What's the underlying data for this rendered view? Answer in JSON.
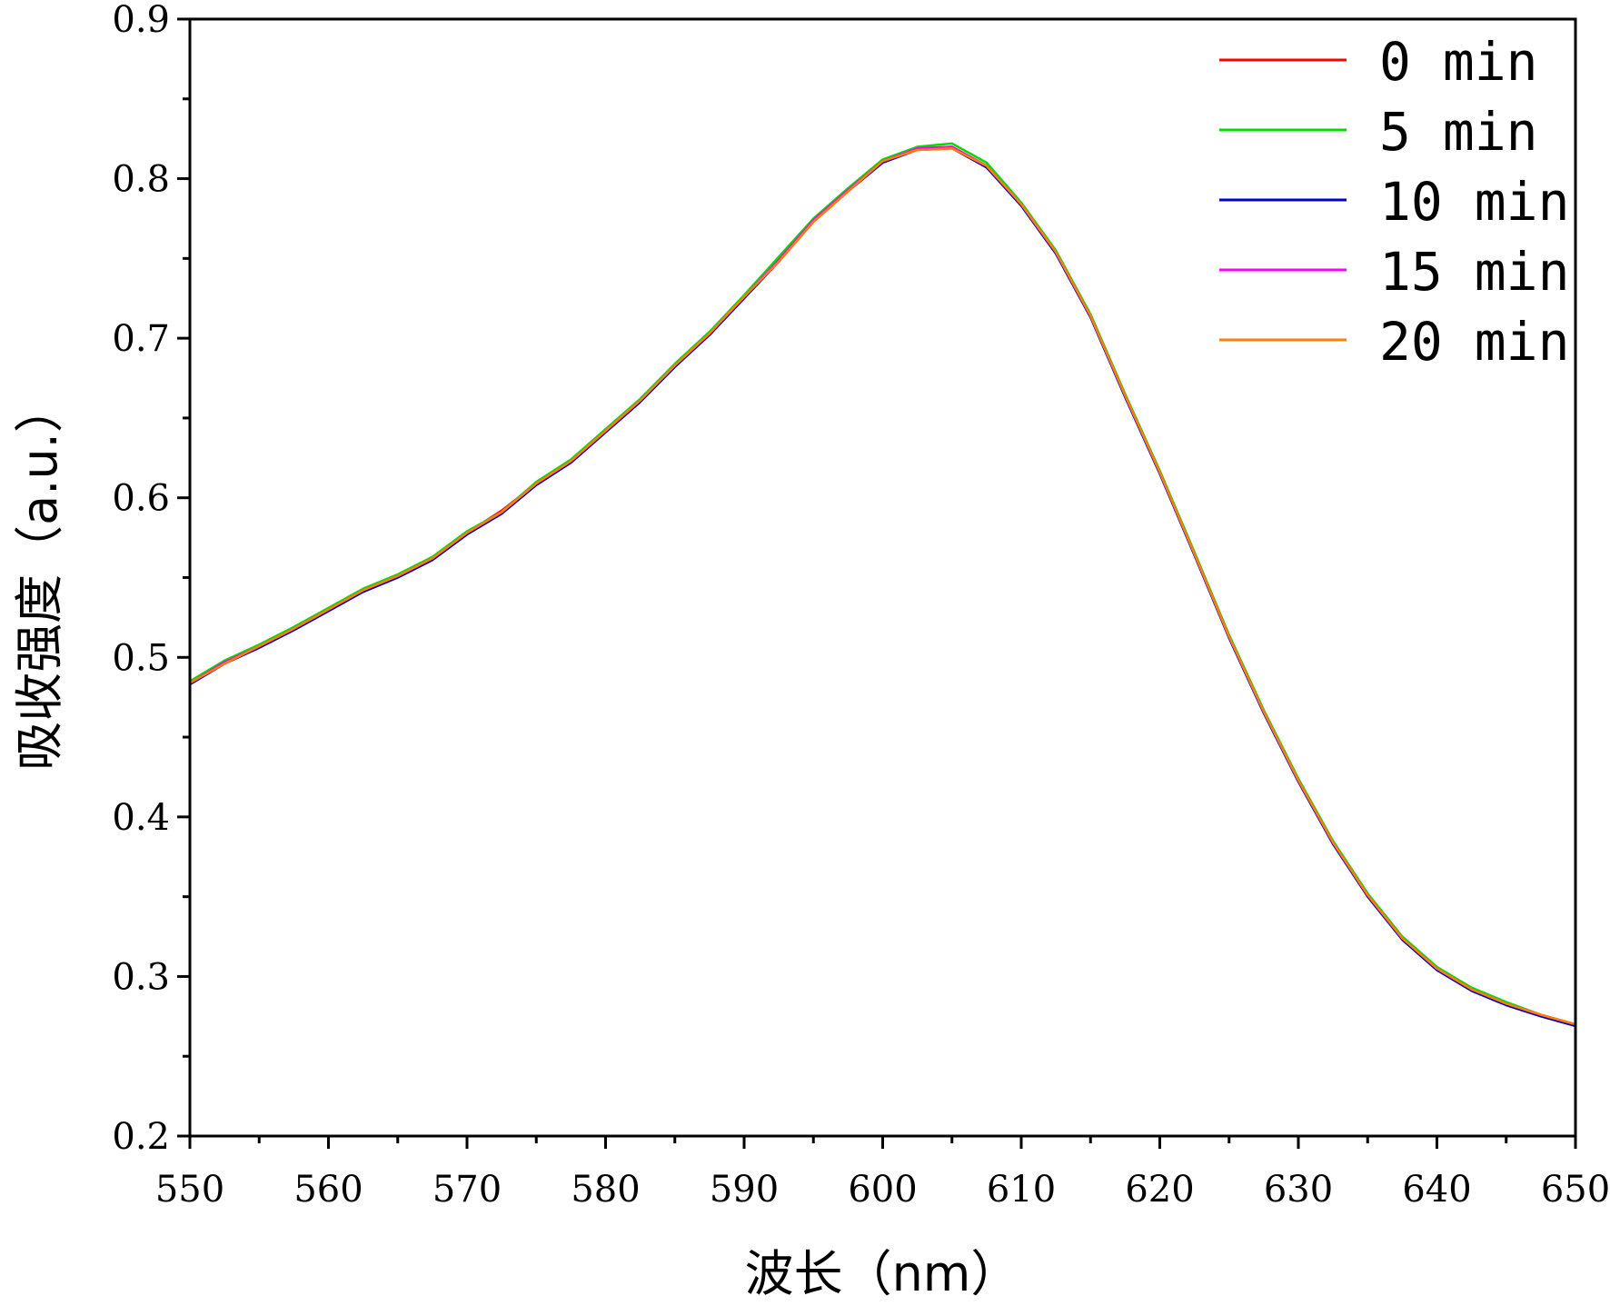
{
  "chart_data": {
    "type": "line",
    "xlabel": "波长（nm）",
    "ylabel": "吸收强度（a.u.）",
    "xlim": [
      550,
      650
    ],
    "ylim": [
      0.2,
      0.9
    ],
    "xticks": [
      550,
      560,
      570,
      580,
      590,
      600,
      610,
      620,
      630,
      640,
      650
    ],
    "yticks": [
      0.2,
      0.3,
      0.4,
      0.5,
      0.6,
      0.7,
      0.8,
      0.9
    ],
    "xtick_labels": [
      "550",
      "560",
      "570",
      "580",
      "590",
      "600",
      "610",
      "620",
      "630",
      "640",
      "650"
    ],
    "ytick_labels": [
      "0.2",
      "0.3",
      "0.4",
      "0.5",
      "0.6",
      "0.7",
      "0.8",
      "0.9"
    ],
    "legend_position": "top-right",
    "grid": false,
    "x": [
      550,
      552.5,
      555,
      557.5,
      560,
      562.5,
      565,
      567.5,
      570,
      572.5,
      575,
      577.5,
      580,
      582.5,
      585,
      587.5,
      590,
      592.5,
      595,
      597.5,
      600,
      602.5,
      605,
      607.5,
      610,
      612.5,
      615,
      617.5,
      620,
      622.5,
      625,
      627.5,
      630,
      632.5,
      635,
      637.5,
      640,
      642.5,
      645,
      647.5,
      650
    ],
    "series": [
      {
        "name": "0 min",
        "color": "#ff0000",
        "values": [
          0.484,
          0.497,
          0.507,
          0.518,
          0.53,
          0.542,
          0.551,
          0.562,
          0.578,
          0.592,
          0.609,
          0.623,
          0.642,
          0.661,
          0.683,
          0.703,
          0.726,
          0.749,
          0.774,
          0.793,
          0.811,
          0.819,
          0.82,
          0.808,
          0.784,
          0.754,
          0.714,
          0.664,
          0.616,
          0.565,
          0.513,
          0.466,
          0.423,
          0.384,
          0.351,
          0.324,
          0.305,
          0.292,
          0.283,
          0.276,
          0.27
        ]
      },
      {
        "name": "5 min",
        "color": "#00dd00",
        "values": [
          0.485,
          0.498,
          0.508,
          0.519,
          0.531,
          0.543,
          0.552,
          0.563,
          0.579,
          0.591,
          0.61,
          0.624,
          0.643,
          0.662,
          0.684,
          0.704,
          0.727,
          0.751,
          0.775,
          0.794,
          0.812,
          0.82,
          0.822,
          0.81,
          0.785,
          0.755,
          0.715,
          0.665,
          0.617,
          0.566,
          0.514,
          0.467,
          0.424,
          0.385,
          0.352,
          0.325,
          0.306,
          0.293,
          0.284,
          0.276,
          0.27
        ]
      },
      {
        "name": "10 min",
        "color": "#0000cc",
        "values": [
          0.483,
          0.496,
          0.506,
          0.517,
          0.529,
          0.541,
          0.55,
          0.561,
          0.577,
          0.59,
          0.608,
          0.622,
          0.641,
          0.66,
          0.682,
          0.702,
          0.725,
          0.748,
          0.773,
          0.792,
          0.81,
          0.818,
          0.819,
          0.807,
          0.783,
          0.753,
          0.713,
          0.663,
          0.615,
          0.564,
          0.512,
          0.465,
          0.422,
          0.383,
          0.35,
          0.323,
          0.304,
          0.291,
          0.282,
          0.275,
          0.269
        ]
      },
      {
        "name": "15 min",
        "color": "#ff00ff",
        "values": [
          0.484,
          0.497,
          0.507,
          0.518,
          0.53,
          0.542,
          0.551,
          0.562,
          0.578,
          0.591,
          0.609,
          0.623,
          0.642,
          0.661,
          0.683,
          0.703,
          0.726,
          0.749,
          0.774,
          0.793,
          0.811,
          0.819,
          0.82,
          0.808,
          0.784,
          0.754,
          0.714,
          0.664,
          0.616,
          0.565,
          0.513,
          0.466,
          0.423,
          0.384,
          0.351,
          0.324,
          0.305,
          0.292,
          0.283,
          0.276,
          0.27
        ]
      },
      {
        "name": "20 min",
        "color": "#ff7f00",
        "values": [
          0.484,
          0.496,
          0.507,
          0.518,
          0.53,
          0.542,
          0.551,
          0.562,
          0.578,
          0.591,
          0.609,
          0.623,
          0.642,
          0.661,
          0.683,
          0.703,
          0.726,
          0.748,
          0.773,
          0.792,
          0.811,
          0.818,
          0.819,
          0.808,
          0.784,
          0.754,
          0.714,
          0.664,
          0.616,
          0.565,
          0.513,
          0.466,
          0.423,
          0.384,
          0.351,
          0.324,
          0.305,
          0.292,
          0.283,
          0.276,
          0.27
        ]
      }
    ]
  }
}
